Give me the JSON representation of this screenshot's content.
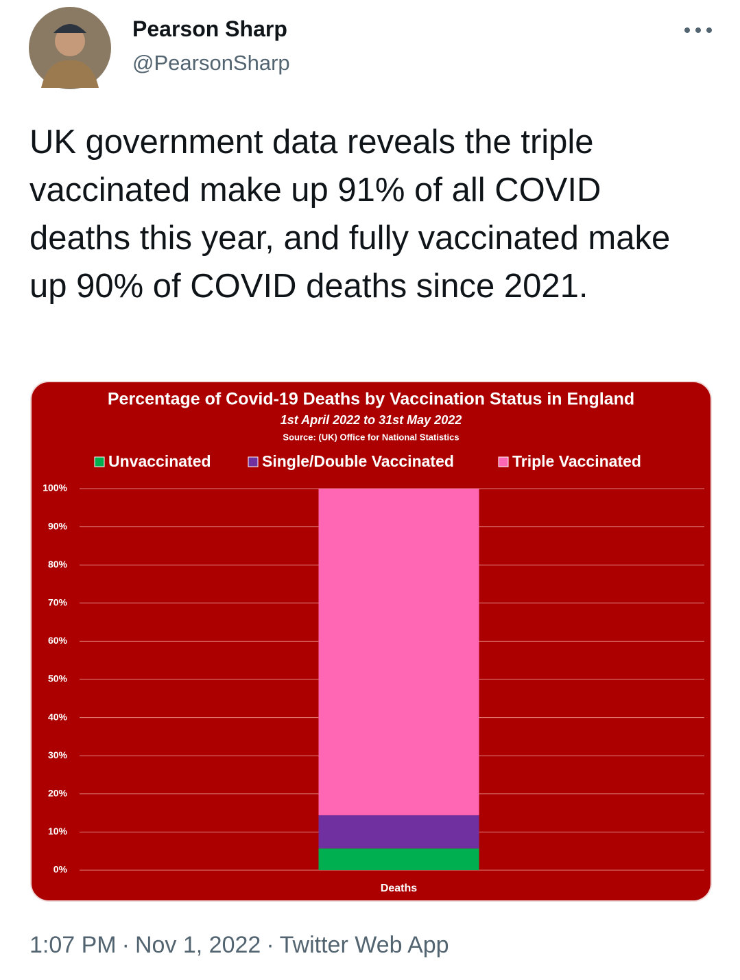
{
  "author": {
    "name": "Pearson Sharp",
    "handle": "@PearsonSharp"
  },
  "tweet_text": "UK government data reveals the triple vaccinated make up 91% of all COVID deaths this year, and fully vaccinated make up 90% of COVID deaths since 2021.",
  "footer": {
    "time": "1:07 PM",
    "separator": "·",
    "date": "Nov 1, 2022",
    "source": "Twitter Web App"
  },
  "chart_data": {
    "type": "stacked_bar",
    "title": "Percentage of Covid-19 Deaths by Vaccination Status in England",
    "subtitle": "1st April 2022 to 31st May 2022",
    "source": "Source: (UK) Office for National Statistics",
    "categories": [
      "Deaths"
    ],
    "series": [
      {
        "name": "Unvaccinated",
        "color": "#00b050",
        "values": [
          5.7
        ]
      },
      {
        "name": "Single/Double Vaccinated",
        "color": "#7030a0",
        "values": [
          8.7
        ]
      },
      {
        "name": "Triple Vaccinated",
        "color": "#ff66b3",
        "values": [
          85.6
        ]
      }
    ],
    "ylim": [
      0,
      100
    ],
    "yticks": [
      {
        "value": 0,
        "label": "0%"
      },
      {
        "value": 10,
        "label": "10%"
      },
      {
        "value": 20,
        "label": "20%"
      },
      {
        "value": 30,
        "label": "30%"
      },
      {
        "value": 40,
        "label": "40%"
      },
      {
        "value": 50,
        "label": "50%"
      },
      {
        "value": 60,
        "label": "60%"
      },
      {
        "value": 70,
        "label": "70%"
      },
      {
        "value": 80,
        "label": "80%"
      },
      {
        "value": 90,
        "label": "90%"
      },
      {
        "value": 100,
        "label": "100%"
      }
    ],
    "grid": true,
    "background": "#ac0000",
    "legend": "top"
  }
}
